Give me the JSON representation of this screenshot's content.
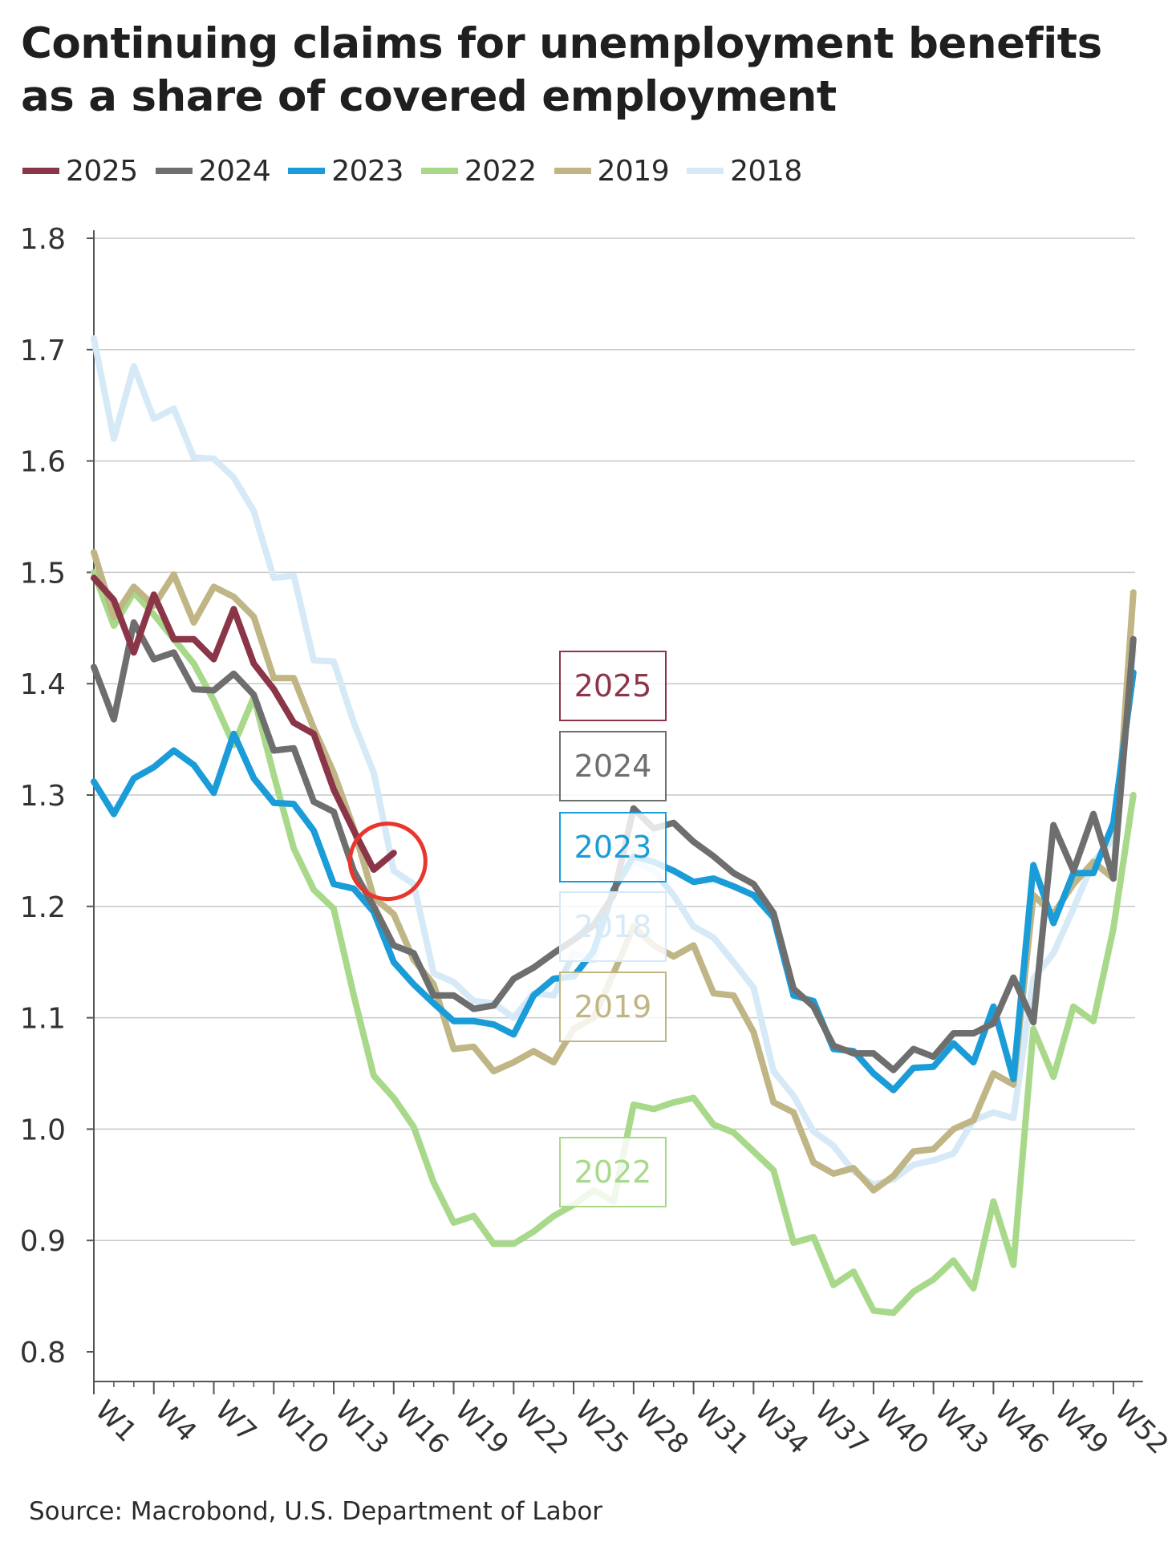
{
  "title_lines": [
    "Continuing claims for unemployment benefits",
    "as a share of covered employment"
  ],
  "source": "Source: Macrobond, U.S. Department of Labor",
  "colors": {
    "2025": "#8b3548",
    "2024": "#6e6e6e",
    "2023": "#1a9cd8",
    "2022": "#a8d98a",
    "2019": "#bfb585",
    "2018": "#d6e9f7",
    "highlight": "#e8362d",
    "grid": "#c8c8c8"
  },
  "chart_data": {
    "type": "line",
    "title": "Continuing claims for unemployment benefits as a share of covered employment",
    "xlabel": "",
    "ylabel": "",
    "ylim": [
      0.8,
      1.8
    ],
    "yticks": [
      "0.8",
      "0.9",
      "1.0",
      "1.1",
      "1.2",
      "1.3",
      "1.4",
      "1.5",
      "1.6",
      "1.7",
      "1.8"
    ],
    "xlim": [
      1,
      53
    ],
    "xticks": [
      "W1",
      "W4",
      "W7",
      "W10",
      "W13",
      "W16",
      "W19",
      "W22",
      "W25",
      "W28",
      "W31",
      "W34",
      "W37",
      "W40",
      "W43",
      "W46",
      "W49",
      "W52"
    ],
    "legend": [
      "2025",
      "2024",
      "2023",
      "2022",
      "2019",
      "2018"
    ],
    "legend_position": "top-left",
    "series_labels": [
      "2025",
      "2024",
      "2023",
      "2018",
      "2019",
      "2022"
    ],
    "annotation": "circle around latest 2025 value (W16)",
    "series": [
      {
        "name": "2018",
        "values": [
          1.71,
          1.62,
          1.685,
          1.638,
          1.647,
          1.603,
          1.602,
          1.585,
          1.555,
          1.495,
          1.497,
          1.421,
          1.42,
          1.365,
          1.32,
          1.232,
          1.22,
          1.14,
          1.132,
          1.115,
          1.113,
          1.1,
          1.122,
          1.12,
          1.158,
          1.152,
          1.215,
          1.24,
          1.232,
          1.21,
          1.182,
          1.172,
          1.15,
          1.127,
          1.052,
          1.03,
          0.998,
          0.985,
          0.962,
          0.95,
          0.955,
          0.968,
          0.972,
          0.978,
          1.008,
          1.015,
          1.01,
          1.135,
          1.158,
          1.198,
          1.24,
          1.26,
          1.43
        ]
      },
      {
        "name": "2022",
        "values": [
          1.5,
          1.452,
          1.482,
          1.462,
          1.44,
          1.418,
          1.385,
          1.345,
          1.388,
          1.318,
          1.252,
          1.215,
          1.198,
          1.12,
          1.048,
          1.028,
          1.002,
          0.952,
          0.916,
          0.922,
          0.897,
          0.897,
          0.908,
          0.922,
          0.932,
          0.945,
          0.935,
          1.022,
          1.018,
          1.024,
          1.028,
          1.004,
          0.997,
          0.98,
          0.963,
          0.898,
          0.903,
          0.86,
          0.872,
          0.837,
          0.835,
          0.854,
          0.865,
          0.882,
          0.857,
          0.935,
          0.878,
          1.09,
          1.047,
          1.11,
          1.097,
          1.18,
          1.3
        ]
      },
      {
        "name": "2019",
        "values": [
          1.518,
          1.46,
          1.487,
          1.47,
          1.498,
          1.455,
          1.487,
          1.478,
          1.46,
          1.405,
          1.405,
          1.36,
          1.32,
          1.27,
          1.208,
          1.193,
          1.152,
          1.13,
          1.072,
          1.074,
          1.052,
          1.06,
          1.07,
          1.06,
          1.09,
          1.1,
          1.14,
          1.182,
          1.165,
          1.155,
          1.165,
          1.122,
          1.12,
          1.087,
          1.024,
          1.015,
          0.97,
          0.96,
          0.965,
          0.945,
          0.958,
          0.98,
          0.982,
          1.0,
          1.008,
          1.05,
          1.04,
          1.21,
          1.193,
          1.22,
          1.24,
          1.225,
          1.482
        ]
      },
      {
        "name": "2023",
        "values": [
          1.312,
          1.283,
          1.315,
          1.325,
          1.34,
          1.327,
          1.302,
          1.355,
          1.315,
          1.293,
          1.292,
          1.268,
          1.22,
          1.216,
          1.195,
          1.15,
          1.13,
          1.113,
          1.097,
          1.097,
          1.094,
          1.085,
          1.12,
          1.135,
          1.137,
          1.16,
          1.215,
          1.245,
          1.24,
          1.232,
          1.222,
          1.225,
          1.218,
          1.21,
          1.19,
          1.12,
          1.115,
          1.072,
          1.07,
          1.05,
          1.035,
          1.055,
          1.056,
          1.077,
          1.06,
          1.11,
          1.045,
          1.237,
          1.185,
          1.23,
          1.23,
          1.275,
          1.41
        ]
      },
      {
        "name": "2024",
        "values": [
          1.415,
          1.368,
          1.455,
          1.422,
          1.428,
          1.395,
          1.394,
          1.409,
          1.39,
          1.34,
          1.342,
          1.294,
          1.285,
          1.232,
          1.2,
          1.165,
          1.158,
          1.12,
          1.12,
          1.108,
          1.111,
          1.135,
          1.145,
          1.158,
          1.17,
          1.183,
          1.21,
          1.288,
          1.27,
          1.275,
          1.258,
          1.245,
          1.23,
          1.22,
          1.194,
          1.126,
          1.11,
          1.075,
          1.068,
          1.068,
          1.053,
          1.072,
          1.065,
          1.086,
          1.086,
          1.095,
          1.136,
          1.096,
          1.273,
          1.232,
          1.283,
          1.225,
          1.44
        ]
      },
      {
        "name": "2025",
        "values": [
          1.495,
          1.475,
          1.428,
          1.48,
          1.44,
          1.44,
          1.422,
          1.467,
          1.418,
          1.395,
          1.365,
          1.355,
          1.305,
          1.268,
          1.233,
          1.248
        ]
      }
    ]
  }
}
